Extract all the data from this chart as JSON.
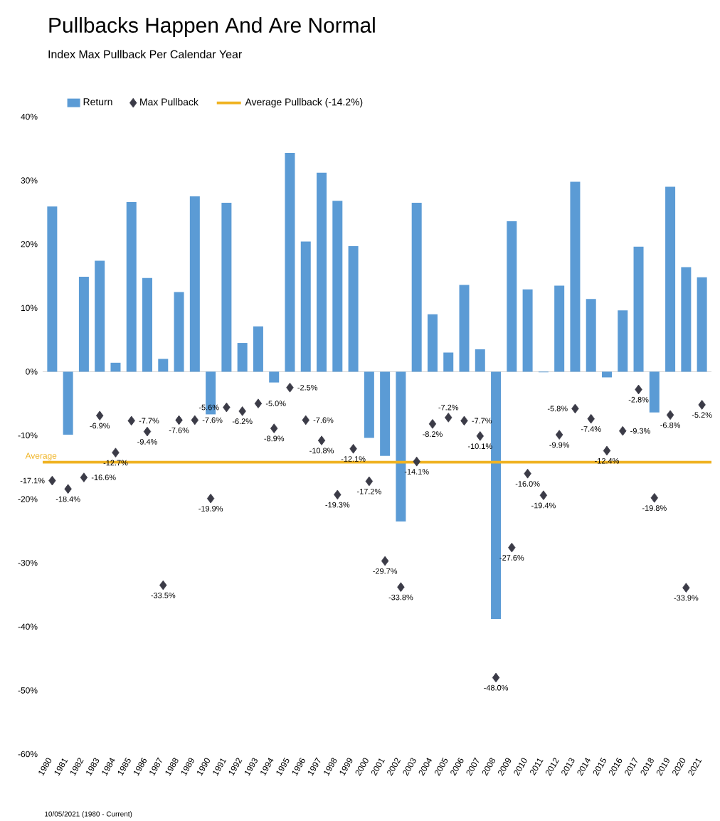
{
  "chart_data": {
    "type": "bar",
    "title": "Pullbacks Happen And Are Normal",
    "subtitle": "Index Max Pullback Per Calendar Year",
    "categories": [
      "1980",
      "1981",
      "1982",
      "1983",
      "1984",
      "1985",
      "1986",
      "1987",
      "1988",
      "1989",
      "1990",
      "1991",
      "1992",
      "1993",
      "1994",
      "1995",
      "1996",
      "1997",
      "1998",
      "1999",
      "2000",
      "2001",
      "2002",
      "2003",
      "2004",
      "2005",
      "2006",
      "2007",
      "2008",
      "2009",
      "2010",
      "2011",
      "2012",
      "2013",
      "2014",
      "2015",
      "2016",
      "2017",
      "2018",
      "2019",
      "2020",
      "2021"
    ],
    "series": [
      {
        "name": "Return",
        "color": "#5b9bd5",
        "values": [
          25.9,
          -9.9,
          14.9,
          17.4,
          1.4,
          26.6,
          14.7,
          2.0,
          12.5,
          27.5,
          -6.7,
          26.5,
          4.5,
          7.1,
          -1.7,
          34.3,
          20.4,
          31.2,
          26.8,
          19.7,
          -10.4,
          -13.2,
          -23.5,
          26.5,
          9.0,
          3.0,
          13.6,
          3.5,
          -38.8,
          23.6,
          12.9,
          -0.1,
          13.5,
          29.8,
          11.4,
          -0.9,
          9.6,
          19.6,
          -6.4,
          29.0,
          16.4,
          14.8
        ]
      },
      {
        "name": "Max Pullback",
        "type": "scatter",
        "color": "#3b3b47",
        "marker": "diamond",
        "values": [
          -17.1,
          -18.4,
          -16.6,
          -6.9,
          -12.7,
          -7.7,
          -9.4,
          -33.5,
          -7.6,
          -7.6,
          -19.9,
          -5.6,
          -6.2,
          -5.0,
          -8.9,
          -2.5,
          -7.6,
          -10.8,
          -19.3,
          -12.1,
          -17.2,
          -29.7,
          -33.8,
          -14.1,
          -8.2,
          -7.2,
          -7.7,
          -10.1,
          -48.0,
          -27.6,
          -16.0,
          -19.4,
          -9.9,
          -5.8,
          -7.4,
          -12.4,
          -9.3,
          -2.8,
          -19.8,
          -6.8,
          -33.9,
          -5.2
        ],
        "value_labels": [
          "-17.1%",
          "-18.4%",
          "-16.6%",
          "-6.9%",
          "-12.7%",
          "-7.7%",
          "-9.4%",
          "-33.5%",
          "-7.6%",
          "-7.6%",
          "-19.9%",
          "-5.6%",
          "-6.2%",
          "-5.0%",
          "-8.9%",
          "-2.5%",
          "-7.6%",
          "-10.8%",
          "-19.3%",
          "-12.1%",
          "-17.2%",
          "-29.7%",
          "-33.8%",
          "-14.1%",
          "-8.2%",
          "-7.2%",
          "-7.7%",
          "-10.1%",
          "-48.0%",
          "-27.6%",
          "-16.0%",
          "-19.4%",
          "-9.9%",
          "-5.8%",
          "-7.4%",
          "-12.4%",
          "-9.3%",
          "-2.8%",
          "-19.8%",
          "-6.8%",
          "-33.9%",
          "-5.2%"
        ]
      }
    ],
    "ref_lines": [
      {
        "axis": "y",
        "value": -14.2,
        "label": "Average Pullback (-14.2%)",
        "color": "#f0b323"
      }
    ],
    "annotations": [
      "Average",
      "10/05/2021 (1980 - Current)"
    ],
    "ylim": [
      -60,
      40
    ],
    "yticks": [
      {
        "value": -60,
        "label": "-60%"
      },
      {
        "value": -50,
        "label": "-50%"
      },
      {
        "value": -40,
        "label": "-40%"
      },
      {
        "value": -30,
        "label": "-30%"
      },
      {
        "value": -20,
        "label": "-20%"
      },
      {
        "value": -10,
        "label": "-10%"
      },
      {
        "value": 0,
        "label": "0%"
      },
      {
        "value": 10,
        "label": "10%"
      },
      {
        "value": 20,
        "label": "20%"
      },
      {
        "value": 30,
        "label": "30%"
      },
      {
        "value": 40,
        "label": "40%"
      }
    ],
    "legend": "top left"
  }
}
